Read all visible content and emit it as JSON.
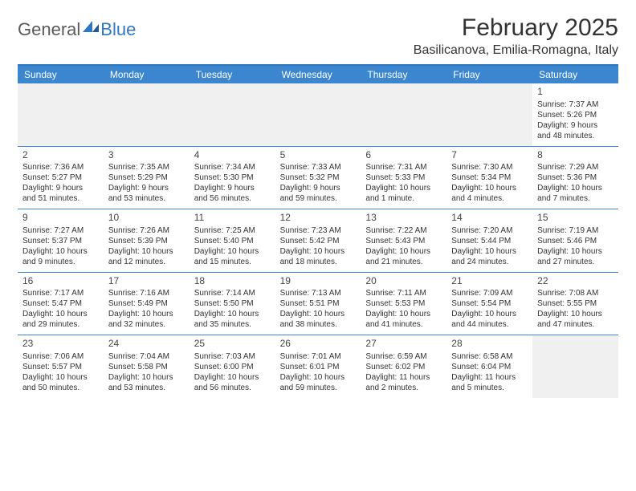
{
  "logo": {
    "general": "General",
    "blue": "Blue"
  },
  "title": "February 2025",
  "location": "Basilicanova, Emilia-Romagna, Italy",
  "colors": {
    "header_bg": "#3b86ce",
    "accent": "#2f78c1",
    "text": "#333333",
    "blank_bg": "#f0f0f0"
  },
  "day_headers": [
    "Sunday",
    "Monday",
    "Tuesday",
    "Wednesday",
    "Thursday",
    "Friday",
    "Saturday"
  ],
  "weeks": [
    [
      null,
      null,
      null,
      null,
      null,
      null,
      {
        "n": "1",
        "sr": "Sunrise: 7:37 AM",
        "ss": "Sunset: 5:26 PM",
        "d1": "Daylight: 9 hours",
        "d2": "and 48 minutes."
      }
    ],
    [
      {
        "n": "2",
        "sr": "Sunrise: 7:36 AM",
        "ss": "Sunset: 5:27 PM",
        "d1": "Daylight: 9 hours",
        "d2": "and 51 minutes."
      },
      {
        "n": "3",
        "sr": "Sunrise: 7:35 AM",
        "ss": "Sunset: 5:29 PM",
        "d1": "Daylight: 9 hours",
        "d2": "and 53 minutes."
      },
      {
        "n": "4",
        "sr": "Sunrise: 7:34 AM",
        "ss": "Sunset: 5:30 PM",
        "d1": "Daylight: 9 hours",
        "d2": "and 56 minutes."
      },
      {
        "n": "5",
        "sr": "Sunrise: 7:33 AM",
        "ss": "Sunset: 5:32 PM",
        "d1": "Daylight: 9 hours",
        "d2": "and 59 minutes."
      },
      {
        "n": "6",
        "sr": "Sunrise: 7:31 AM",
        "ss": "Sunset: 5:33 PM",
        "d1": "Daylight: 10 hours",
        "d2": "and 1 minute."
      },
      {
        "n": "7",
        "sr": "Sunrise: 7:30 AM",
        "ss": "Sunset: 5:34 PM",
        "d1": "Daylight: 10 hours",
        "d2": "and 4 minutes."
      },
      {
        "n": "8",
        "sr": "Sunrise: 7:29 AM",
        "ss": "Sunset: 5:36 PM",
        "d1": "Daylight: 10 hours",
        "d2": "and 7 minutes."
      }
    ],
    [
      {
        "n": "9",
        "sr": "Sunrise: 7:27 AM",
        "ss": "Sunset: 5:37 PM",
        "d1": "Daylight: 10 hours",
        "d2": "and 9 minutes."
      },
      {
        "n": "10",
        "sr": "Sunrise: 7:26 AM",
        "ss": "Sunset: 5:39 PM",
        "d1": "Daylight: 10 hours",
        "d2": "and 12 minutes."
      },
      {
        "n": "11",
        "sr": "Sunrise: 7:25 AM",
        "ss": "Sunset: 5:40 PM",
        "d1": "Daylight: 10 hours",
        "d2": "and 15 minutes."
      },
      {
        "n": "12",
        "sr": "Sunrise: 7:23 AM",
        "ss": "Sunset: 5:42 PM",
        "d1": "Daylight: 10 hours",
        "d2": "and 18 minutes."
      },
      {
        "n": "13",
        "sr": "Sunrise: 7:22 AM",
        "ss": "Sunset: 5:43 PM",
        "d1": "Daylight: 10 hours",
        "d2": "and 21 minutes."
      },
      {
        "n": "14",
        "sr": "Sunrise: 7:20 AM",
        "ss": "Sunset: 5:44 PM",
        "d1": "Daylight: 10 hours",
        "d2": "and 24 minutes."
      },
      {
        "n": "15",
        "sr": "Sunrise: 7:19 AM",
        "ss": "Sunset: 5:46 PM",
        "d1": "Daylight: 10 hours",
        "d2": "and 27 minutes."
      }
    ],
    [
      {
        "n": "16",
        "sr": "Sunrise: 7:17 AM",
        "ss": "Sunset: 5:47 PM",
        "d1": "Daylight: 10 hours",
        "d2": "and 29 minutes."
      },
      {
        "n": "17",
        "sr": "Sunrise: 7:16 AM",
        "ss": "Sunset: 5:49 PM",
        "d1": "Daylight: 10 hours",
        "d2": "and 32 minutes."
      },
      {
        "n": "18",
        "sr": "Sunrise: 7:14 AM",
        "ss": "Sunset: 5:50 PM",
        "d1": "Daylight: 10 hours",
        "d2": "and 35 minutes."
      },
      {
        "n": "19",
        "sr": "Sunrise: 7:13 AM",
        "ss": "Sunset: 5:51 PM",
        "d1": "Daylight: 10 hours",
        "d2": "and 38 minutes."
      },
      {
        "n": "20",
        "sr": "Sunrise: 7:11 AM",
        "ss": "Sunset: 5:53 PM",
        "d1": "Daylight: 10 hours",
        "d2": "and 41 minutes."
      },
      {
        "n": "21",
        "sr": "Sunrise: 7:09 AM",
        "ss": "Sunset: 5:54 PM",
        "d1": "Daylight: 10 hours",
        "d2": "and 44 minutes."
      },
      {
        "n": "22",
        "sr": "Sunrise: 7:08 AM",
        "ss": "Sunset: 5:55 PM",
        "d1": "Daylight: 10 hours",
        "d2": "and 47 minutes."
      }
    ],
    [
      {
        "n": "23",
        "sr": "Sunrise: 7:06 AM",
        "ss": "Sunset: 5:57 PM",
        "d1": "Daylight: 10 hours",
        "d2": "and 50 minutes."
      },
      {
        "n": "24",
        "sr": "Sunrise: 7:04 AM",
        "ss": "Sunset: 5:58 PM",
        "d1": "Daylight: 10 hours",
        "d2": "and 53 minutes."
      },
      {
        "n": "25",
        "sr": "Sunrise: 7:03 AM",
        "ss": "Sunset: 6:00 PM",
        "d1": "Daylight: 10 hours",
        "d2": "and 56 minutes."
      },
      {
        "n": "26",
        "sr": "Sunrise: 7:01 AM",
        "ss": "Sunset: 6:01 PM",
        "d1": "Daylight: 10 hours",
        "d2": "and 59 minutes."
      },
      {
        "n": "27",
        "sr": "Sunrise: 6:59 AM",
        "ss": "Sunset: 6:02 PM",
        "d1": "Daylight: 11 hours",
        "d2": "and 2 minutes."
      },
      {
        "n": "28",
        "sr": "Sunrise: 6:58 AM",
        "ss": "Sunset: 6:04 PM",
        "d1": "Daylight: 11 hours",
        "d2": "and 5 minutes."
      },
      null
    ]
  ]
}
